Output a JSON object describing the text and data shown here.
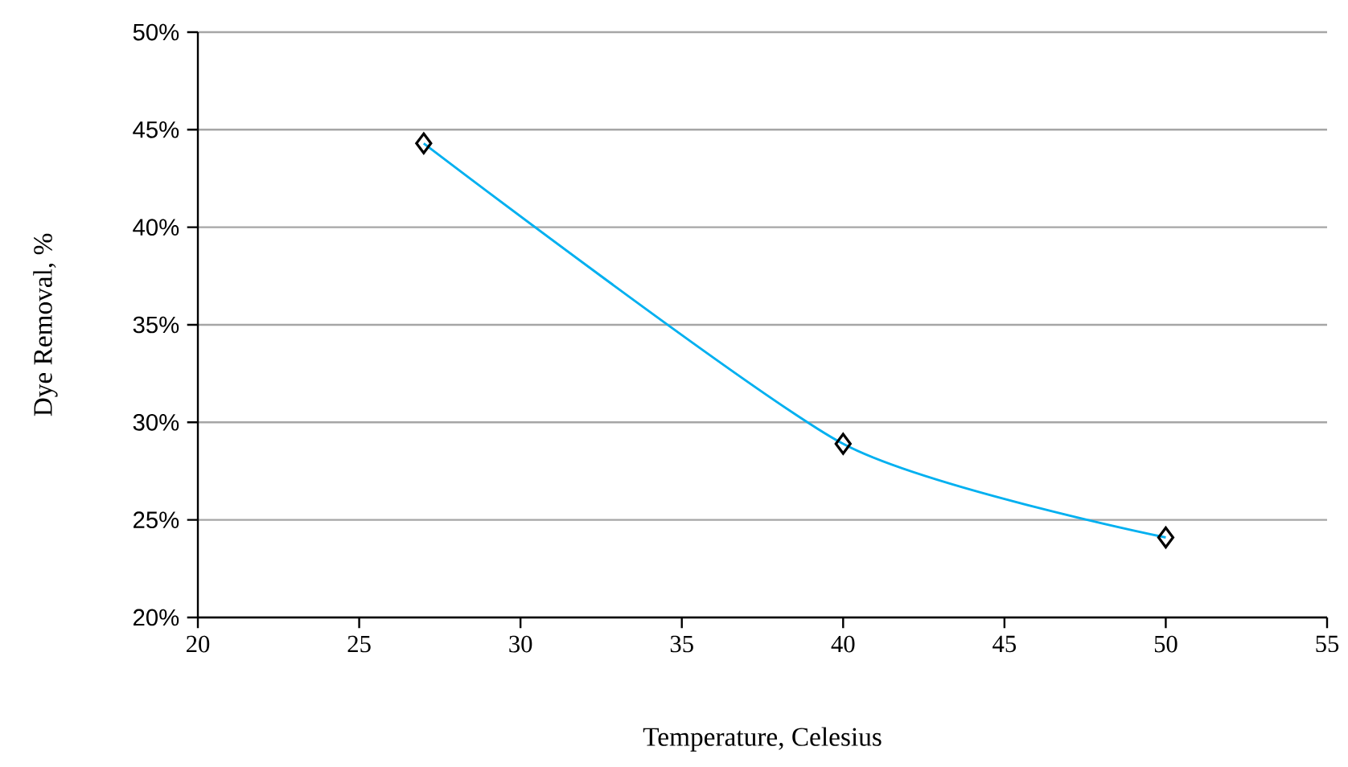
{
  "chart_data": {
    "type": "line",
    "xlabel": "Temperature, Celesius",
    "ylabel": "Dye Removal, %",
    "x": [
      27,
      40,
      50
    ],
    "series": [
      {
        "color": "#00b0f0",
        "values": [
          44.3,
          28.9,
          24.1
        ]
      }
    ],
    "xlim": [
      20,
      55
    ],
    "xticks": [
      20,
      25,
      30,
      35,
      40,
      45,
      50,
      55
    ],
    "ylim": [
      20,
      50
    ],
    "yticks": [
      {
        "value": 20,
        "label": "20%"
      },
      {
        "value": 25,
        "label": "25%"
      },
      {
        "value": 30,
        "label": "30%"
      },
      {
        "value": 35,
        "label": "35%"
      },
      {
        "value": 40,
        "label": "40%"
      },
      {
        "value": 45,
        "label": "45%"
      },
      {
        "value": 50,
        "label": "50%"
      }
    ],
    "grid": "y",
    "marker": "diamond",
    "line_style": "solid"
  }
}
